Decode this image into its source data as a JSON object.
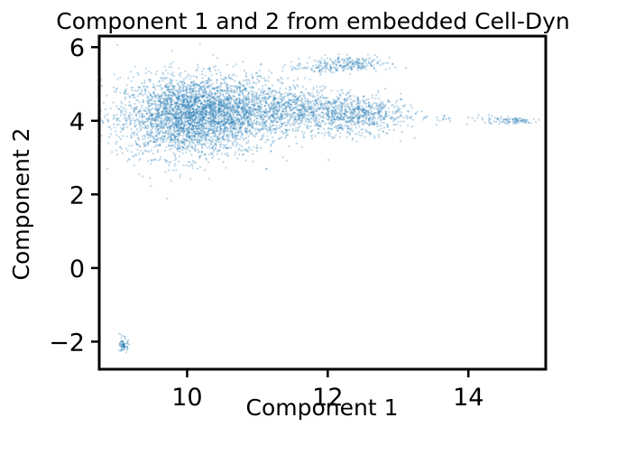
{
  "chart_data": {
    "type": "scatter",
    "title": "Component 1 and 2 from embedded Cell-Dyn",
    "xlabel": "Component 1",
    "ylabel": "Component 2",
    "xlim": [
      8.75,
      15.1
    ],
    "ylim": [
      -2.75,
      6.3
    ],
    "xticks": [
      10,
      12,
      14
    ],
    "yticks": [
      -2,
      0,
      2,
      4,
      6
    ],
    "xtick_labels": [
      "10",
      "12",
      "14"
    ],
    "ytick_labels": [
      "−2",
      "0",
      "2",
      "4",
      "6"
    ],
    "grid": false,
    "legend": "none",
    "point_color": "#1f77b4",
    "clusters": [
      {
        "center": [
          10.0,
          4.1
        ],
        "spread": [
          0.5,
          0.55
        ],
        "count": 2600
      },
      {
        "center": [
          10.6,
          4.3
        ],
        "spread": [
          0.55,
          0.45
        ],
        "count": 1300
      },
      {
        "center": [
          11.6,
          4.3
        ],
        "spread": [
          0.45,
          0.3
        ],
        "count": 700
      },
      {
        "center": [
          12.4,
          4.05
        ],
        "spread": [
          0.35,
          0.25
        ],
        "count": 400
      },
      {
        "center": [
          12.6,
          4.3
        ],
        "spread": [
          0.3,
          0.18
        ],
        "count": 200
      },
      {
        "center": [
          12.3,
          5.55
        ],
        "spread": [
          0.3,
          0.1
        ],
        "count": 220
      },
      {
        "center": [
          11.8,
          5.45
        ],
        "spread": [
          0.25,
          0.07
        ],
        "count": 60
      },
      {
        "center": [
          14.6,
          4.0
        ],
        "spread": [
          0.2,
          0.05
        ],
        "count": 90
      },
      {
        "center": [
          13.7,
          4.05
        ],
        "spread": [
          0.45,
          0.06
        ],
        "count": 40
      },
      {
        "center": [
          9.1,
          -2.1
        ],
        "spread": [
          0.03,
          0.1
        ],
        "count": 70
      }
    ]
  }
}
